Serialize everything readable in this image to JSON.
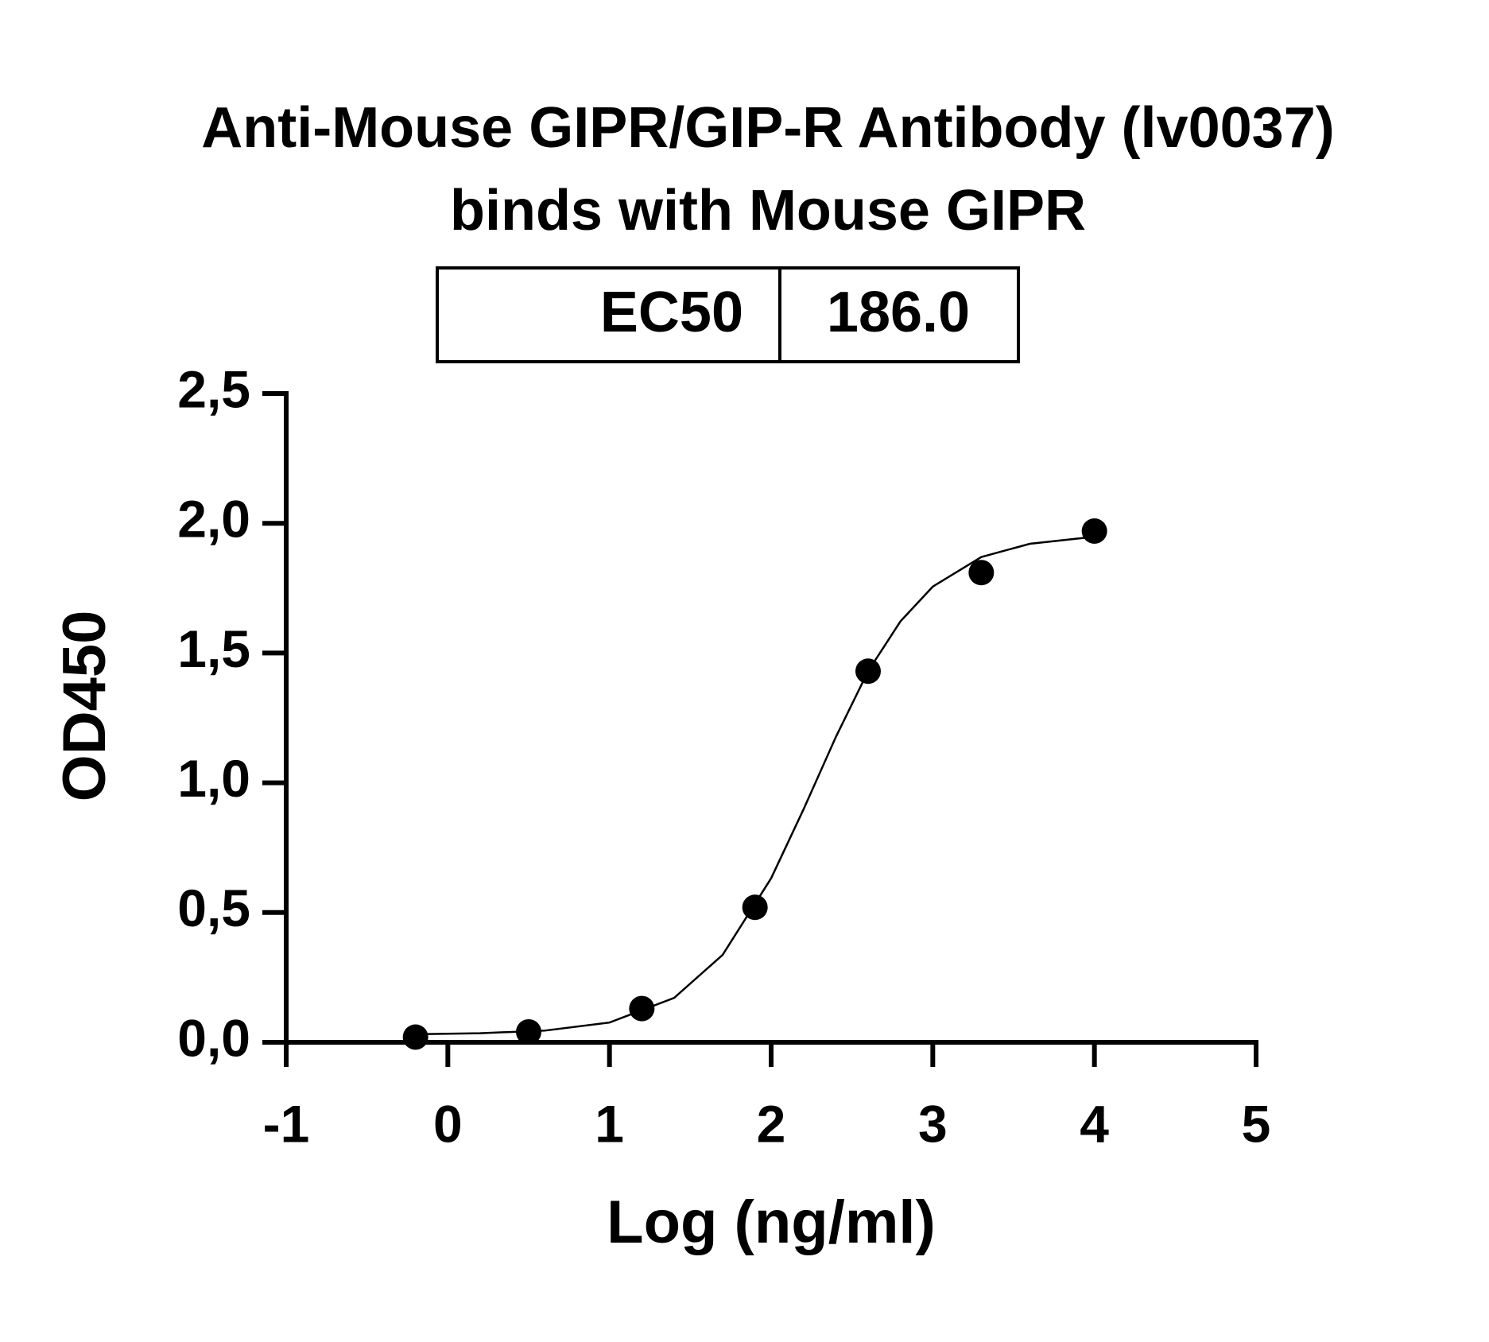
{
  "chart_data": {
    "type": "scatter",
    "title": [
      "Anti-Mouse GIPR/GIP-R Antibody (lv0037)",
      "binds with Mouse GIPR"
    ],
    "annotation_table": [
      [
        "EC50",
        "186.0"
      ]
    ],
    "x_label": "Log (ng/ml)",
    "y_label": "OD450",
    "x": [
      -0.2,
      0.5,
      1.2,
      1.9,
      2.6,
      3.3,
      4.0
    ],
    "values": [
      0.02,
      0.04,
      0.13,
      0.52,
      1.43,
      1.81,
      1.97
    ],
    "color": "#000000",
    "curve": {
      "x": [
        -0.2,
        0.2,
        0.6,
        1.0,
        1.4,
        1.7,
        2.0,
        2.2,
        2.4,
        2.6,
        2.8,
        3.0,
        3.3,
        3.6,
        4.0
      ],
      "y": [
        0.031,
        0.035,
        0.045,
        0.076,
        0.171,
        0.337,
        0.632,
        0.897,
        1.176,
        1.43,
        1.622,
        1.756,
        1.87,
        1.921,
        1.948
      ]
    },
    "xlim": [
      -1,
      5
    ],
    "xticks": [
      -1,
      0,
      1,
      2,
      3,
      4,
      5
    ],
    "ylim": [
      0,
      2.5
    ],
    "yticks": [
      {
        "value": 0,
        "label": "0,0"
      },
      {
        "value": 0.5,
        "label": "0,5"
      },
      {
        "value": 1,
        "label": "1,0"
      },
      {
        "value": 1.5,
        "label": "1,5"
      },
      {
        "value": 2,
        "label": "2,0"
      },
      {
        "value": 2.5,
        "label": "2,5"
      }
    ],
    "grid": false
  }
}
